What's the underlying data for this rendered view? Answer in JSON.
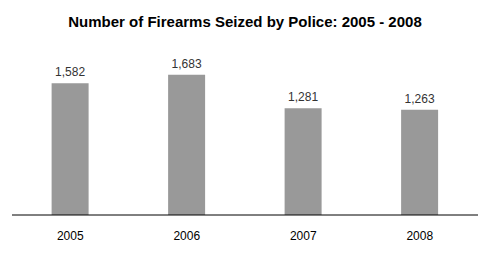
{
  "chart_data": {
    "type": "bar",
    "title": "Number of Firearms Seized by Police: 2005 - 2008",
    "categories": [
      "2005",
      "2006",
      "2007",
      "2008"
    ],
    "values": [
      1582,
      1683,
      1281,
      1263
    ],
    "value_labels": [
      "1,582",
      "1,683",
      "1,281",
      "1,263"
    ],
    "color": "#999999",
    "data_labels": true,
    "tick_labels": "x",
    "grid": false
  }
}
